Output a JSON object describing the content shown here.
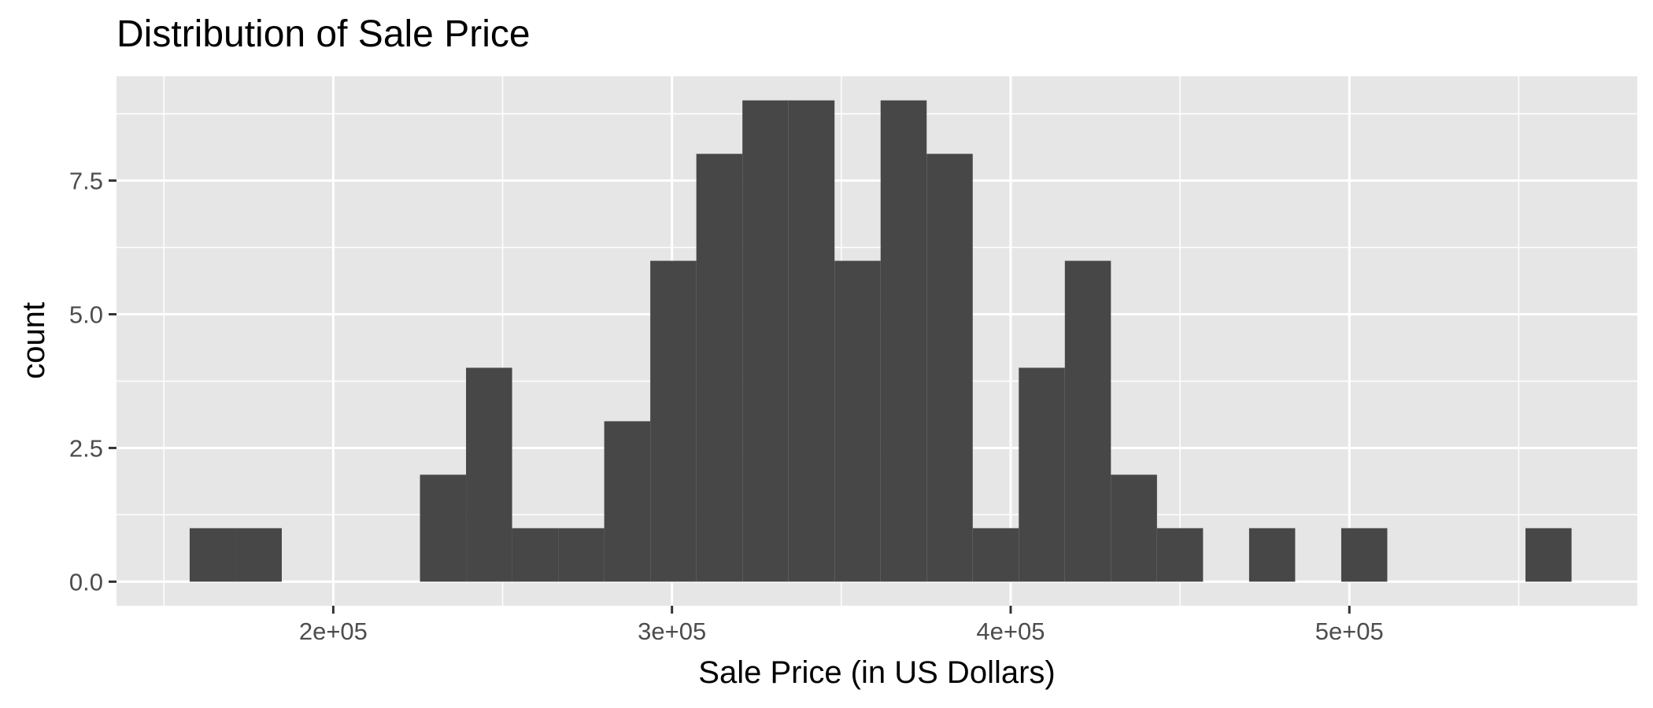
{
  "chart_data": {
    "type": "bar",
    "title": "Distribution of Sale Price",
    "xlabel": "Sale Price (in US Dollars)",
    "ylabel": "count",
    "x_range": [
      136000,
      585000
    ],
    "y_range": [
      -0.45,
      9.45
    ],
    "binwidth": 13600,
    "bins": [
      {
        "x_start": 157600,
        "x_end": 171200,
        "count": 1
      },
      {
        "x_start": 171200,
        "x_end": 184800,
        "count": 1
      },
      {
        "x_start": 225600,
        "x_end": 239200,
        "count": 2
      },
      {
        "x_start": 239200,
        "x_end": 252800,
        "count": 4
      },
      {
        "x_start": 252800,
        "x_end": 266400,
        "count": 1
      },
      {
        "x_start": 266400,
        "x_end": 280000,
        "count": 1
      },
      {
        "x_start": 280000,
        "x_end": 293600,
        "count": 3
      },
      {
        "x_start": 293600,
        "x_end": 307200,
        "count": 6
      },
      {
        "x_start": 307200,
        "x_end": 320800,
        "count": 8
      },
      {
        "x_start": 320800,
        "x_end": 334400,
        "count": 9
      },
      {
        "x_start": 334400,
        "x_end": 348000,
        "count": 9
      },
      {
        "x_start": 348000,
        "x_end": 361600,
        "count": 6
      },
      {
        "x_start": 361600,
        "x_end": 375200,
        "count": 9
      },
      {
        "x_start": 375200,
        "x_end": 388800,
        "count": 8
      },
      {
        "x_start": 388800,
        "x_end": 402400,
        "count": 1
      },
      {
        "x_start": 402400,
        "x_end": 416000,
        "count": 4
      },
      {
        "x_start": 416000,
        "x_end": 429600,
        "count": 6
      },
      {
        "x_start": 429600,
        "x_end": 443200,
        "count": 2
      },
      {
        "x_start": 443200,
        "x_end": 456800,
        "count": 1
      },
      {
        "x_start": 470400,
        "x_end": 484000,
        "count": 1
      },
      {
        "x_start": 497600,
        "x_end": 511200,
        "count": 1
      },
      {
        "x_start": 552000,
        "x_end": 565600,
        "count": 1
      }
    ],
    "x_ticks": [
      {
        "value": 200000,
        "label": "2e+05"
      },
      {
        "value": 300000,
        "label": "3e+05"
      },
      {
        "value": 400000,
        "label": "4e+05"
      },
      {
        "value": 500000,
        "label": "5e+05"
      }
    ],
    "x_minor_gridlines": [
      150000,
      250000,
      350000,
      450000,
      550000
    ],
    "y_ticks": [
      {
        "value": 0,
        "label": "0.0"
      },
      {
        "value": 2.5,
        "label": "2.5"
      },
      {
        "value": 5,
        "label": "5.0"
      },
      {
        "value": 7.5,
        "label": "7.5"
      }
    ],
    "y_minor_gridlines": [
      1.25,
      3.75,
      6.25,
      8.75
    ],
    "grid": true,
    "legend": "none",
    "colors": {
      "bar_fill": "#474747",
      "panel_background": "#e6e6e6",
      "gridline": "#ffffff",
      "tick_text": "#4d4d4d",
      "tick_mark": "#333333",
      "title_text": "#000000"
    }
  }
}
